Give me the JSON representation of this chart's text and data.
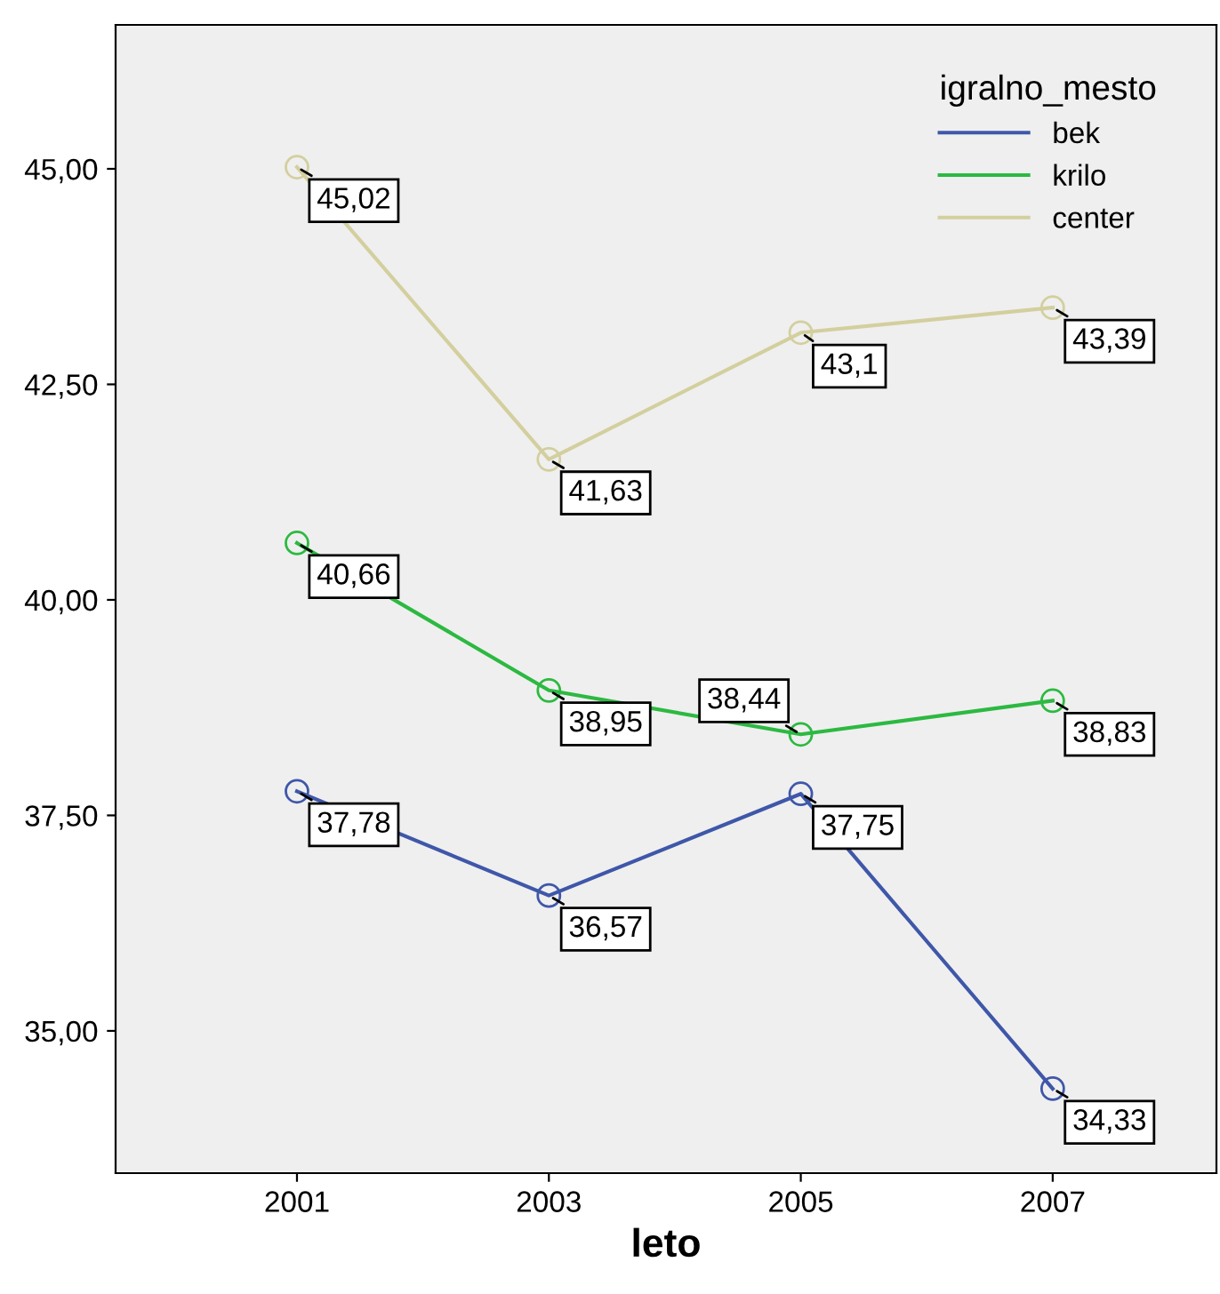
{
  "chart_data": {
    "type": "line",
    "xlabel": "leto",
    "legend_title": "igralno_mesto",
    "x": [
      2001,
      2003,
      2005,
      2007
    ],
    "xlim": [
      1999.56,
      2008.3
    ],
    "xticks": [
      2001,
      2003,
      2005,
      2007
    ],
    "ylim": [
      33.35,
      46.67
    ],
    "yticks": [
      {
        "value": 35,
        "label": "35,00"
      },
      {
        "value": 37.5,
        "label": "37,50"
      },
      {
        "value": 40,
        "label": "40,00"
      },
      {
        "value": 42.5,
        "label": "42,50"
      },
      {
        "value": 45,
        "label": "45,00"
      }
    ],
    "series": [
      {
        "name": "bek",
        "color": "#3f57a9",
        "values": [
          37.78,
          36.57,
          37.75,
          34.33
        ],
        "value_labels": [
          "37,78",
          "36,57",
          "37,75",
          "34,33"
        ]
      },
      {
        "name": "krilo",
        "color": "#2cb941",
        "values": [
          40.66,
          38.95,
          38.44,
          38.83
        ],
        "value_labels": [
          "40,66",
          "38,95",
          "38,44",
          "38,83"
        ]
      },
      {
        "name": "center",
        "color": "#d3cf9e",
        "values": [
          45.02,
          41.63,
          43.1,
          43.39
        ],
        "value_labels": [
          "45,02",
          "41,63",
          "43,1",
          "43,39"
        ]
      }
    ],
    "marker": "circle",
    "line_style": "solid",
    "grid": false,
    "legend": "top right"
  }
}
